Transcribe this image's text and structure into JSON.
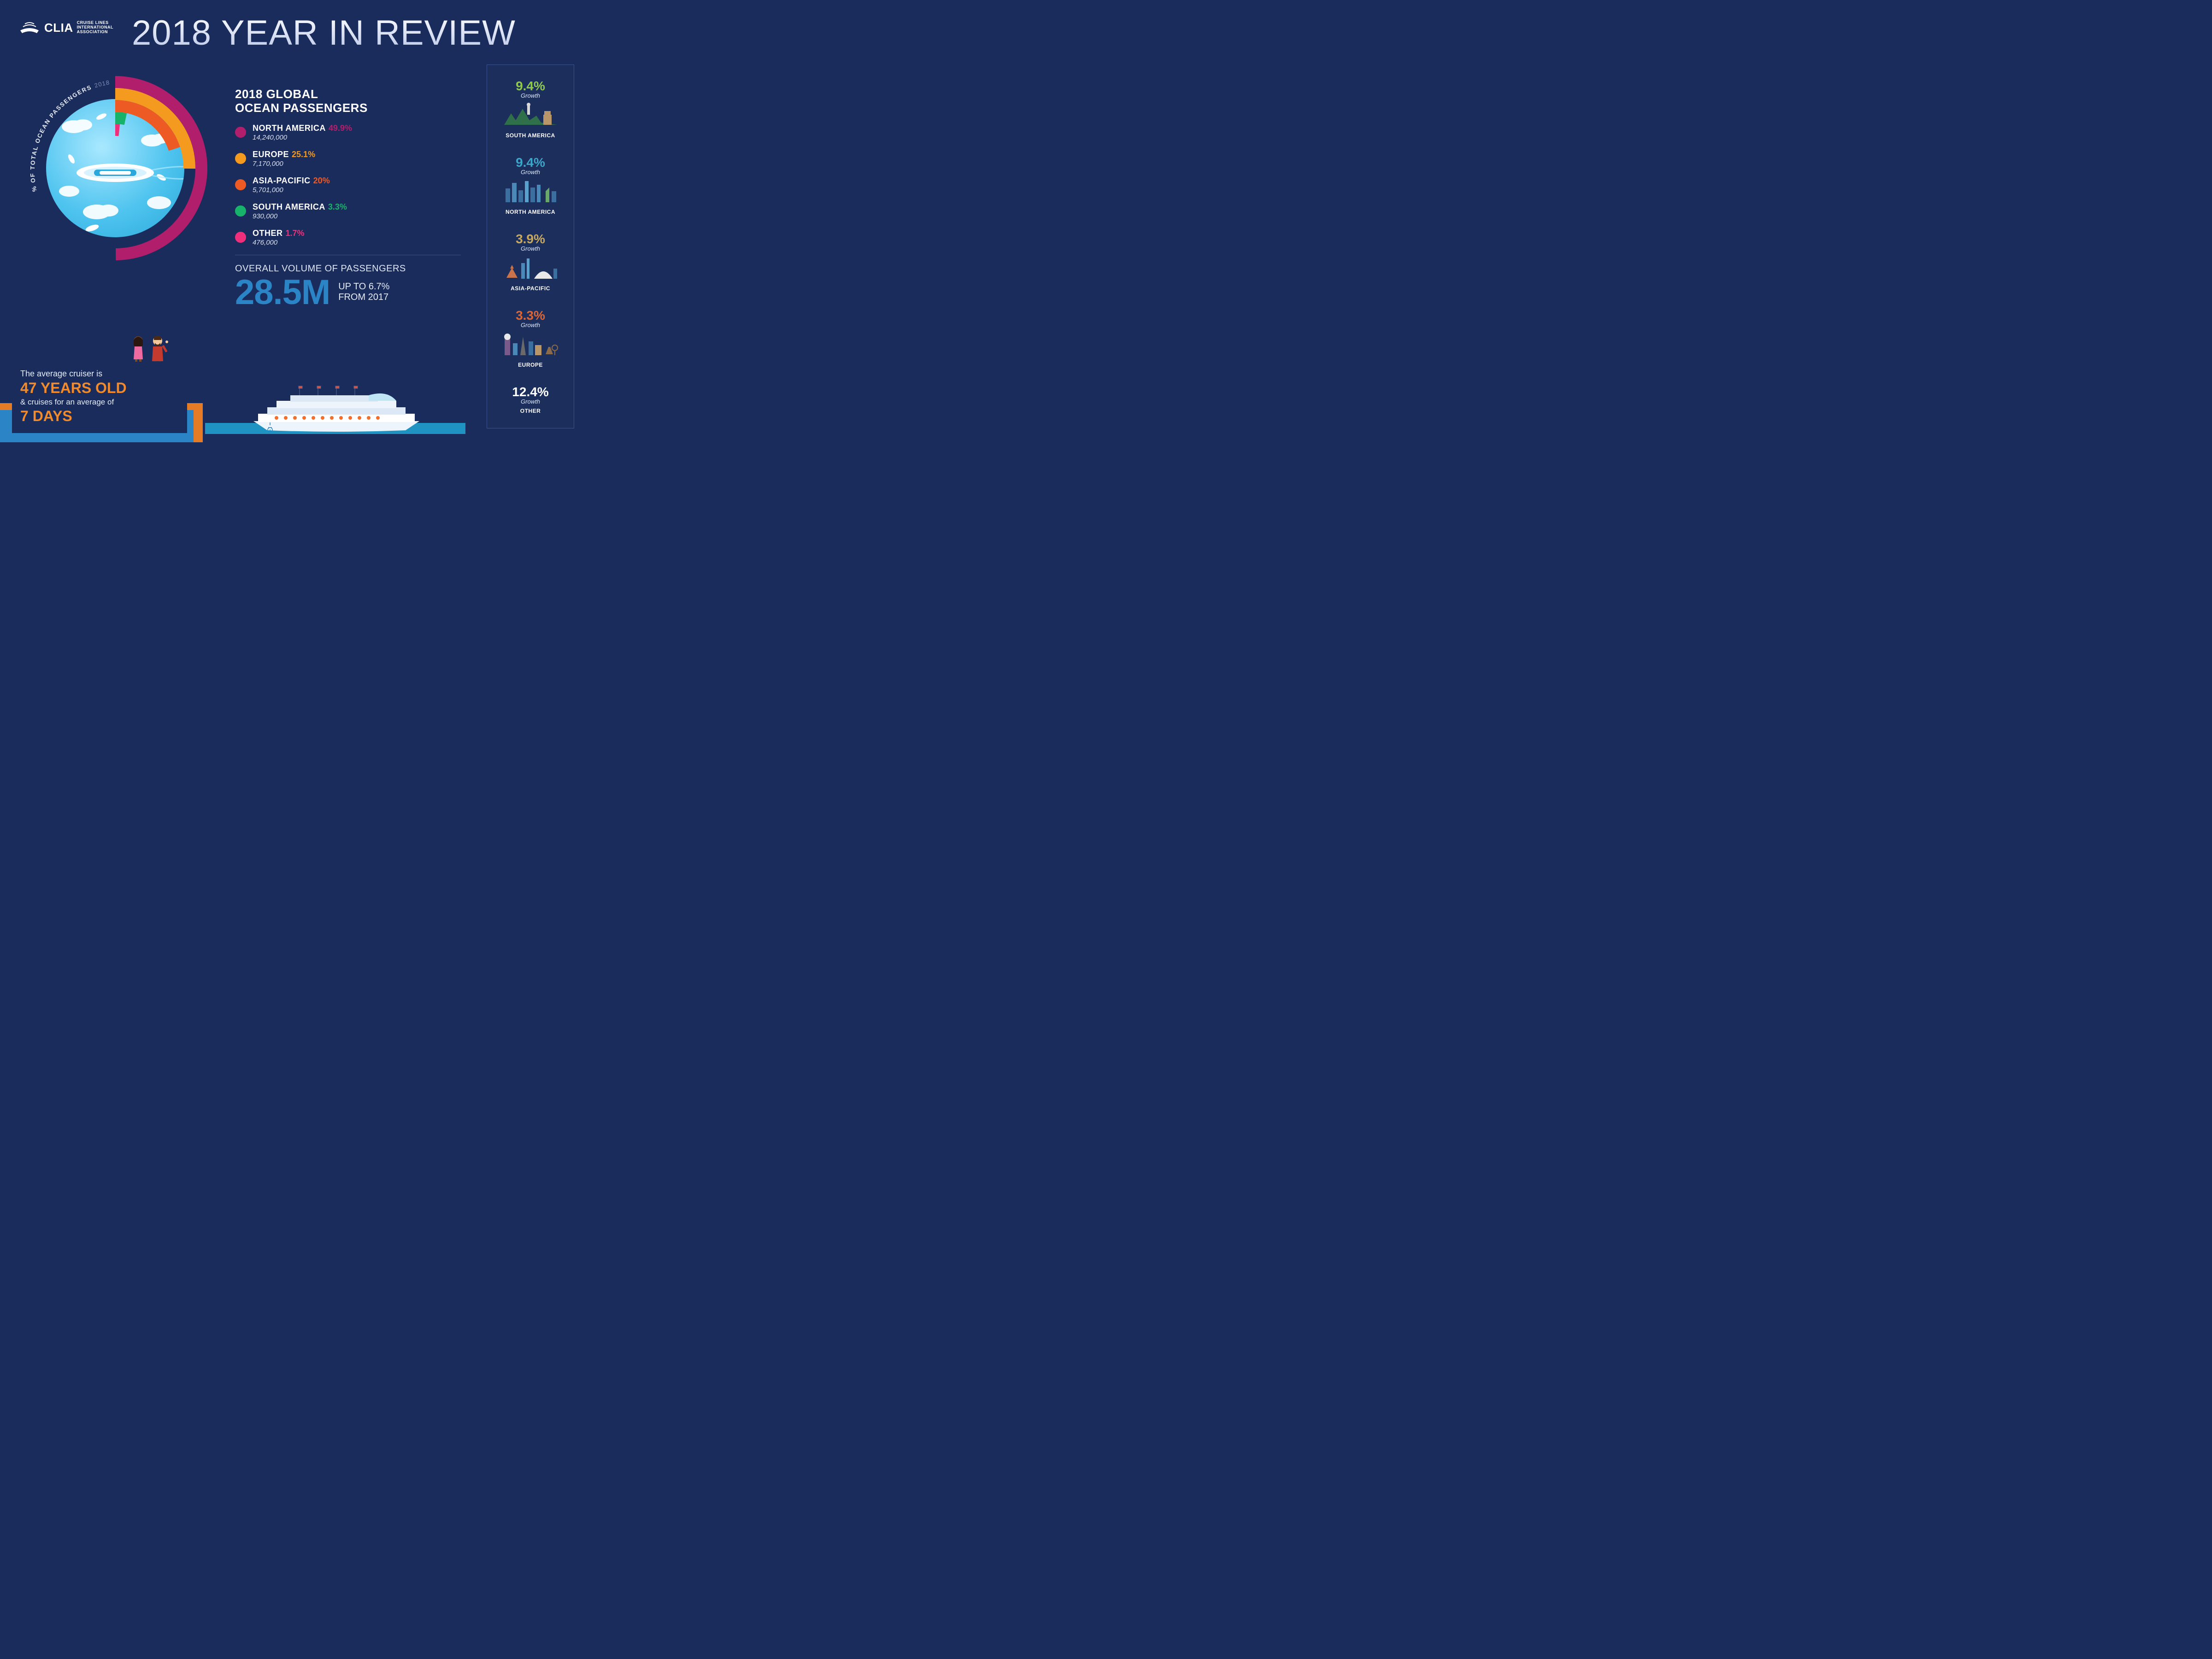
{
  "brand": {
    "acronym": "CLIA",
    "full": "CRUISE LINES\nINTERNATIONAL\nASSOCIATION"
  },
  "headline": "2018 YEAR IN REVIEW",
  "donut": {
    "curve_label": "% OF TOTAL OCEAN PASSENGERS",
    "curve_year": "2018",
    "background": "#1a2c5b",
    "ring_thickness": 26,
    "outer_radius": 200
  },
  "passengers": {
    "title": "2018 GLOBAL\nOCEAN PASSENGERS",
    "regions": [
      {
        "name": "NORTH AMERICA",
        "pct": 49.9,
        "pct_label": "49.9%",
        "value": "14,240,000",
        "color": "#b11e6b"
      },
      {
        "name": "EUROPE",
        "pct": 25.1,
        "pct_label": "25.1%",
        "value": "7,170,000",
        "color": "#f39a1f"
      },
      {
        "name": "ASIA-PACIFIC",
        "pct": 20.0,
        "pct_label": "20%",
        "value": "5,701,000",
        "color": "#ee5a24"
      },
      {
        "name": "SOUTH AMERICA",
        "pct": 3.3,
        "pct_label": "3.3%",
        "value": "930,000",
        "color": "#18b36b"
      },
      {
        "name": "OTHER",
        "pct": 1.7,
        "pct_label": "1.7%",
        "value": "476,000",
        "color": "#ef2f7b"
      }
    ]
  },
  "overall": {
    "label": "OVERALL VOLUME OF PASSENGERS",
    "number": "28.5M",
    "sub": "UP TO 6.7%\nFROM 2017",
    "number_color": "#2a84c6"
  },
  "factoid": {
    "line1": "The average cruiser is",
    "big1": "47 YEARS OLD",
    "line2": "& cruises for an average of",
    "big2": "7 DAYS",
    "highlight_color": "#f08a2c",
    "bg_orange": "#e67b25",
    "bg_blue": "#2a84c6"
  },
  "growth": {
    "word": "Growth",
    "items": [
      {
        "region": "SOUTH AMERICA",
        "pct": "9.4%",
        "color": "#8fc94a"
      },
      {
        "region": "NORTH AMERICA",
        "pct": "9.4%",
        "color": "#3aa6c9"
      },
      {
        "region": "ASIA-PACIFIC",
        "pct": "3.9%",
        "color": "#c9a85a"
      },
      {
        "region": "EUROPE",
        "pct": "3.3%",
        "color": "#e0642f"
      },
      {
        "region": "OTHER",
        "pct": "12.4%",
        "color": "#ffffff"
      }
    ]
  },
  "colors": {
    "page_bg": "#1a2c5b",
    "rail_border": "#3d5390",
    "text_light": "#e6ecf8"
  }
}
